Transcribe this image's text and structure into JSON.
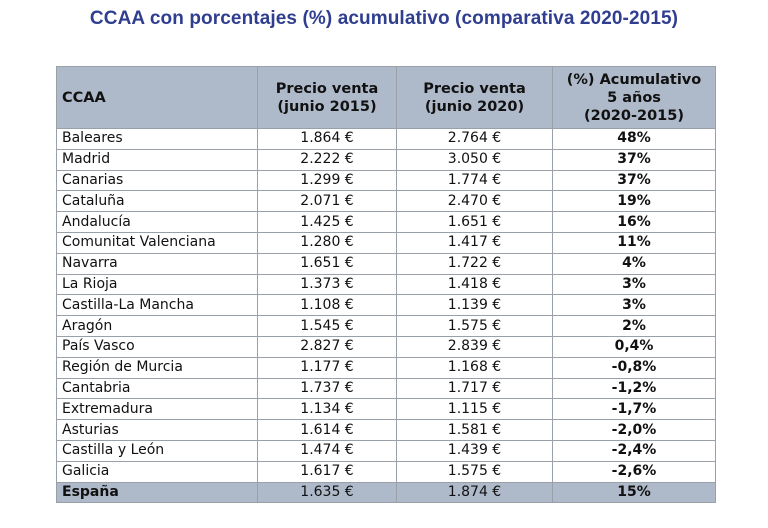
{
  "title": "CCAA con porcentajes (%) acumulativo (comparativa 2020-2015)",
  "headers": {
    "ccaa": "CCAA",
    "p2015_l1": "Precio venta",
    "p2015_l2": "(junio 2015)",
    "p2020_l1": "Precio venta",
    "p2020_l2": "(junio 2020)",
    "pct_l1": "(%) Acumulativo",
    "pct_l2": "5 años",
    "pct_l3": "(2020-2015)"
  },
  "colors": {
    "positive": "#2e6da4",
    "negative": "#a51d1d",
    "header_bg": "#aeb9c9",
    "title": "#2f3e8f"
  },
  "rows": [
    {
      "name": "Baleares",
      "p2015": "1.864 €",
      "p2020": "2.764 €",
      "pct": "48%",
      "trend": "pos"
    },
    {
      "name": "Madrid",
      "p2015": "2.222 €",
      "p2020": "3.050 €",
      "pct": "37%",
      "trend": "pos"
    },
    {
      "name": "Canarias",
      "p2015": "1.299 €",
      "p2020": "1.774 €",
      "pct": "37%",
      "trend": "pos"
    },
    {
      "name": "Cataluña",
      "p2015": "2.071 €",
      "p2020": "2.470 €",
      "pct": "19%",
      "trend": "pos"
    },
    {
      "name": "Andalucía",
      "p2015": "1.425 €",
      "p2020": "1.651 €",
      "pct": "16%",
      "trend": "pos"
    },
    {
      "name": "Comunitat Valenciana",
      "p2015": "1.280 €",
      "p2020": "1.417 €",
      "pct": "11%",
      "trend": "pos"
    },
    {
      "name": "Navarra",
      "p2015": "1.651 €",
      "p2020": "1.722 €",
      "pct": "4%",
      "trend": "pos"
    },
    {
      "name": "La Rioja",
      "p2015": "1.373 €",
      "p2020": "1.418 €",
      "pct": "3%",
      "trend": "pos"
    },
    {
      "name": "Castilla-La Mancha",
      "p2015": "1.108 €",
      "p2020": "1.139 €",
      "pct": "3%",
      "trend": "pos"
    },
    {
      "name": "Aragón",
      "p2015": "1.545 €",
      "p2020": "1.575 €",
      "pct": "2%",
      "trend": "pos"
    },
    {
      "name": "País Vasco",
      "p2015": "2.827 €",
      "p2020": "2.839 €",
      "pct": "0,4%",
      "trend": "pos"
    },
    {
      "name": "Región de Murcia",
      "p2015": "1.177 €",
      "p2020": "1.168 €",
      "pct": "-0,8%",
      "trend": "neg"
    },
    {
      "name": "Cantabria",
      "p2015": "1.737 €",
      "p2020": "1.717 €",
      "pct": "-1,2%",
      "trend": "neg"
    },
    {
      "name": "Extremadura",
      "p2015": "1.134 €",
      "p2020": "1.115 €",
      "pct": "-1,7%",
      "trend": "neg"
    },
    {
      "name": "Asturias",
      "p2015": "1.614 €",
      "p2020": "1.581 €",
      "pct": "-2,0%",
      "trend": "neg"
    },
    {
      "name": "Castilla y León",
      "p2015": "1.474 €",
      "p2020": "1.439 €",
      "pct": "-2,4%",
      "trend": "neg"
    },
    {
      "name": "Galicia",
      "p2015": "1.617 €",
      "p2020": "1.575 €",
      "pct": "-2,6%",
      "trend": "neg"
    },
    {
      "name": "España",
      "p2015": "1.635 €",
      "p2020": "1.874 €",
      "pct": "15%",
      "trend": "pos",
      "total": true
    }
  ]
}
